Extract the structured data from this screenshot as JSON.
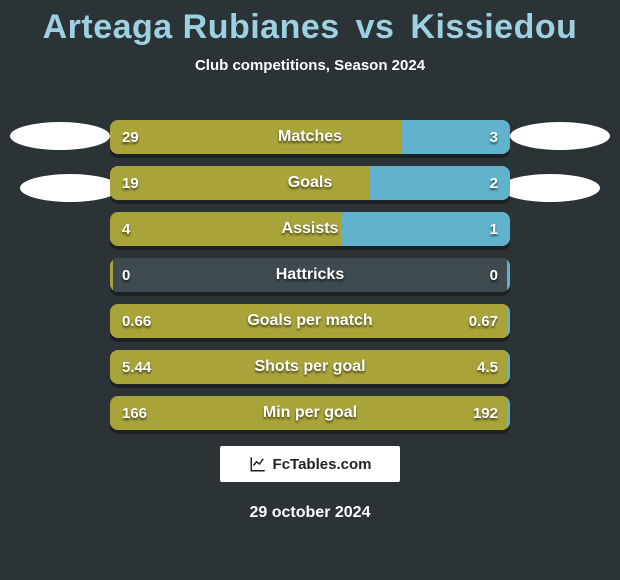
{
  "colors": {
    "background": "#2b3337",
    "title": "#9bd1e0",
    "left_seg": "#a8a43a",
    "right_seg": "#61b3cd",
    "empty_seg": "#3e4a4f"
  },
  "header": {
    "player_left": "Arteaga Rubianes",
    "vs": "vs",
    "player_right": "Kissiedou",
    "subtitle": "Club competitions, Season 2024"
  },
  "stats": [
    {
      "label": "Matches",
      "left_value": "29",
      "right_value": "3",
      "left_pct": 73,
      "right_pct": 27
    },
    {
      "label": "Goals",
      "left_value": "19",
      "right_value": "2",
      "left_pct": 65,
      "right_pct": 35
    },
    {
      "label": "Assists",
      "left_value": "4",
      "right_value": "1",
      "left_pct": 58,
      "right_pct": 42
    },
    {
      "label": "Hattricks",
      "left_value": "0",
      "right_value": "0",
      "left_pct": 0.8,
      "right_pct": 0.8
    },
    {
      "label": "Goals per match",
      "left_value": "0.66",
      "right_value": "0.67",
      "left_pct": 99.2,
      "right_pct": 0.8
    },
    {
      "label": "Shots per goal",
      "left_value": "5.44",
      "right_value": "4.5",
      "left_pct": 99.2,
      "right_pct": 0.8
    },
    {
      "label": "Min per goal",
      "left_value": "166",
      "right_value": "192",
      "left_pct": 99.2,
      "right_pct": 0.8
    }
  ],
  "footer": {
    "logo_text": "FcTables.com",
    "date": "29 october 2024"
  }
}
